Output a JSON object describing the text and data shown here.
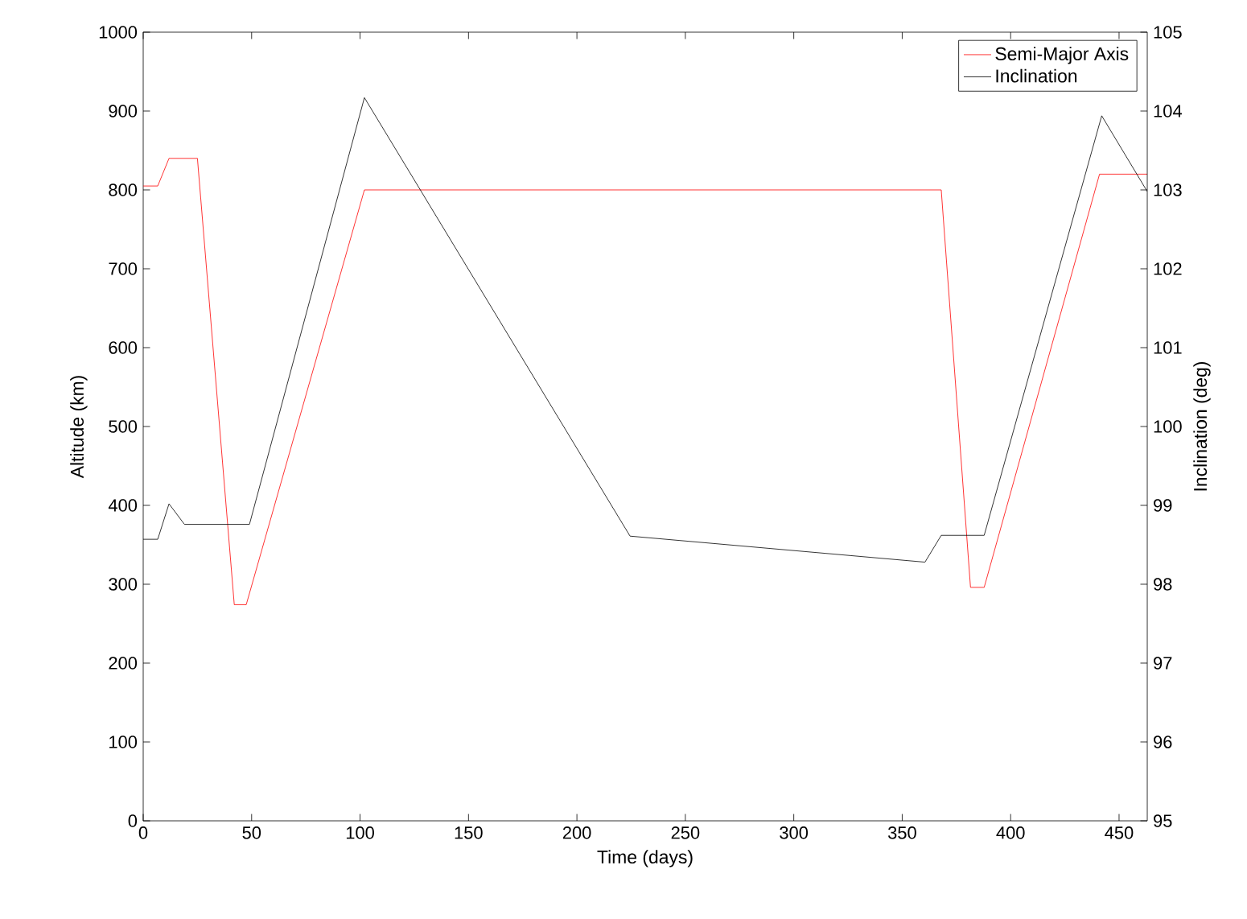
{
  "chart_data": {
    "type": "line",
    "xlabel": "Time (days)",
    "ylabel": "Altitude (km)",
    "y2label": "Inclination (deg)",
    "xlim": [
      0,
      463
    ],
    "xticks": [
      0,
      50,
      100,
      150,
      200,
      250,
      300,
      350,
      400,
      450
    ],
    "ylim": [
      0,
      1000
    ],
    "yticks": [
      0,
      100,
      200,
      300,
      400,
      500,
      600,
      700,
      800,
      900,
      1000
    ],
    "y2lim": [
      95,
      105
    ],
    "y2ticks": [
      95,
      96,
      97,
      98,
      99,
      100,
      101,
      102,
      103,
      104,
      105
    ],
    "grid": false,
    "legend": "top right",
    "marker": "none",
    "line_style": "solid",
    "series": [
      {
        "name": "Semi-Major Axis",
        "color": "#ff0000",
        "x": [
          0,
          6.7,
          11.9,
          25,
          42,
          47.5,
          102,
          368,
          381.5,
          387.8,
          441,
          463
        ],
        "values": [
          805,
          805,
          840,
          840,
          274,
          274,
          800,
          800,
          296,
          296,
          820,
          820
        ]
      },
      {
        "name": "Inclination",
        "color": "#000000",
        "axis": "y2",
        "x": [
          0,
          6.7,
          11.9,
          19,
          49,
          102,
          224.5,
          360.5,
          368,
          387.8,
          442,
          463
        ],
        "values": [
          98.57,
          98.57,
          99.02,
          98.76,
          98.76,
          104.17,
          98.61,
          98.28,
          98.62,
          98.62,
          103.94,
          102.98
        ]
      }
    ]
  }
}
